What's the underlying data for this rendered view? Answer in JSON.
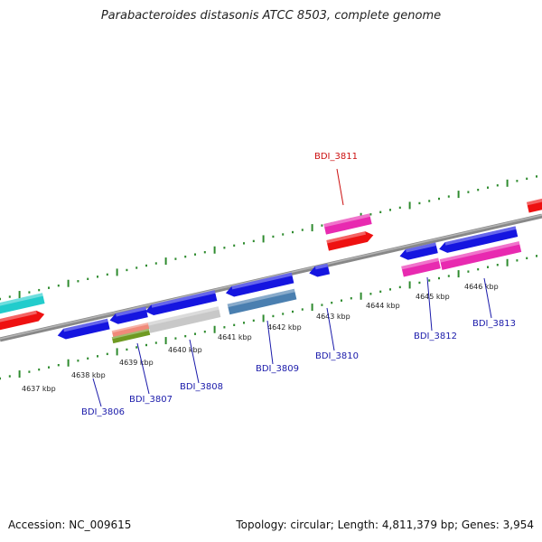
{
  "title": "Parabacteroides distasonis ATCC 8503, complete genome",
  "accession": "Accession: NC_009615",
  "summary": "Topology: circular; Length: 4,811,379 bp; Genes: 3,954",
  "scale_labels": [
    "4637 kbp",
    "4638 kbp",
    "4639 kbp",
    "4640 kbp",
    "4641 kbp",
    "4642 kbp",
    "4643 kbp",
    "4644 kbp",
    "4645 kbp",
    "4646 kbp"
  ],
  "gene_labels": [
    {
      "name": "BDI_3806",
      "color": "#1a1aaa"
    },
    {
      "name": "BDI_3807",
      "color": "#1a1aaa"
    },
    {
      "name": "BDI_3808",
      "color": "#1a1aaa"
    },
    {
      "name": "BDI_3809",
      "color": "#1a1aaa"
    },
    {
      "name": "BDI_3810",
      "color": "#1a1aaa"
    },
    {
      "name": "BDI_3811",
      "color": "#cc1111"
    },
    {
      "name": "BDI_3812",
      "color": "#1a1aaa"
    },
    {
      "name": "BDI_3813",
      "color": "#1a1aaa"
    }
  ],
  "colors": {
    "backbone": "#8a8a8a",
    "tick": "#2e8b2e",
    "blue": "#1515e0",
    "red": "#ee1111",
    "magenta": "#e82ab0",
    "cyan": "#22cccc",
    "steel": "#4a7fb0",
    "gray": "#c8c8c8",
    "olive": "#6f9a22",
    "salmon": "#f08a7a"
  }
}
